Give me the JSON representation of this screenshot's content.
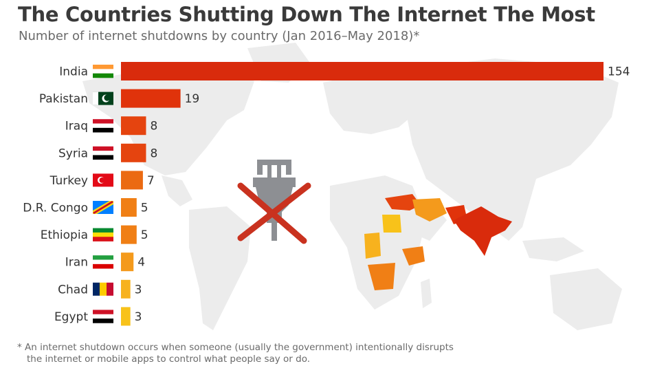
{
  "title": "The Countries Shutting Down The Internet The Most",
  "subtitle": "Number of internet shutdowns by country (Jan 2016–May 2018)*",
  "footnote": {
    "line1": "* An internet shutdown occurs when someone (usually the government) intentionally disrupts",
    "line2": "the internet or mobile apps to control what people say or do."
  },
  "icons": [
    "world-map-icon",
    "unplugged-internet-icon",
    "flag-icon"
  ],
  "colors": {
    "background": "#ffffff",
    "map_land": "#ececec",
    "title": "#3a3a3a",
    "subtitle": "#6a6a6a",
    "bar_high": "#d92b0c",
    "bar_mid": "#eb6a12",
    "bar_low": "#f5a623",
    "bar_lowest": "#f8c21a",
    "cross": "#c9321f",
    "plug": "#8d8f93"
  },
  "chart_data": {
    "type": "bar",
    "orientation": "horizontal",
    "categories": [
      "India",
      "Pakistan",
      "Iraq",
      "Syria",
      "Turkey",
      "D.R. Congo",
      "Ethiopia",
      "Iran",
      "Chad",
      "Egypt"
    ],
    "values": [
      154,
      19,
      8,
      8,
      7,
      5,
      5,
      4,
      3,
      3
    ],
    "bar_colors": [
      "#d92b0c",
      "#e0330b",
      "#e5440f",
      "#e5440f",
      "#eb6a12",
      "#f07f15",
      "#f07f15",
      "#f49a1c",
      "#f7b21e",
      "#f8c21a"
    ],
    "xlim": [
      0,
      154
    ],
    "grid": false,
    "legend": "none",
    "title": "The Countries Shutting Down The Internet The Most",
    "subtitle": "Number of internet shutdowns by country (Jan 2016–May 2018)*"
  }
}
